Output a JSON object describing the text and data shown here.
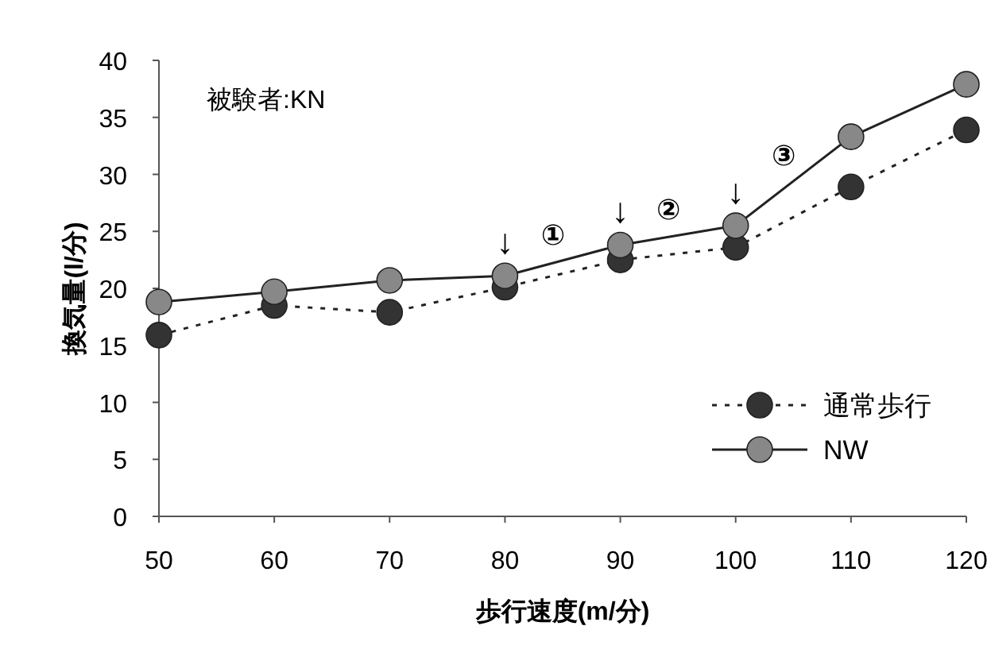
{
  "chart_data": {
    "type": "line",
    "xlabel": "歩行速度(m/分)",
    "ylabel": "換気量(l/分)",
    "x": [
      50,
      60,
      70,
      80,
      90,
      100,
      110,
      120
    ],
    "series": [
      {
        "name": "通常歩行",
        "color": "#333333",
        "line_style": "dotted",
        "values": [
          15.9,
          18.5,
          17.9,
          20.1,
          22.5,
          23.6,
          28.9,
          33.9
        ]
      },
      {
        "name": "NW",
        "color": "#888888",
        "line_style": "solid",
        "values": [
          18.8,
          19.7,
          20.7,
          21.1,
          23.8,
          25.5,
          33.3,
          37.9
        ]
      }
    ],
    "xlim": [
      50,
      120
    ],
    "xticks": [
      50,
      60,
      70,
      80,
      90,
      100,
      110,
      120
    ],
    "ylim": [
      0,
      40
    ],
    "yticks": [
      0,
      5,
      10,
      15,
      20,
      25,
      30,
      35,
      40
    ],
    "marker": "circle",
    "grid": false,
    "legend": "bottom right",
    "annotations": [
      "被験者:KN",
      {
        "text": "↓",
        "x": 80,
        "y": 21.1
      },
      {
        "text": "↓",
        "x": 90,
        "y": 23.8
      },
      {
        "text": "↓",
        "x": 100,
        "y": 25.5
      },
      {
        "text": "①",
        "x": 85,
        "y": 22.45
      },
      {
        "text": "②",
        "x": 95,
        "y": 24.65
      },
      {
        "text": "③",
        "x": 105,
        "y": 29.4
      }
    ]
  }
}
